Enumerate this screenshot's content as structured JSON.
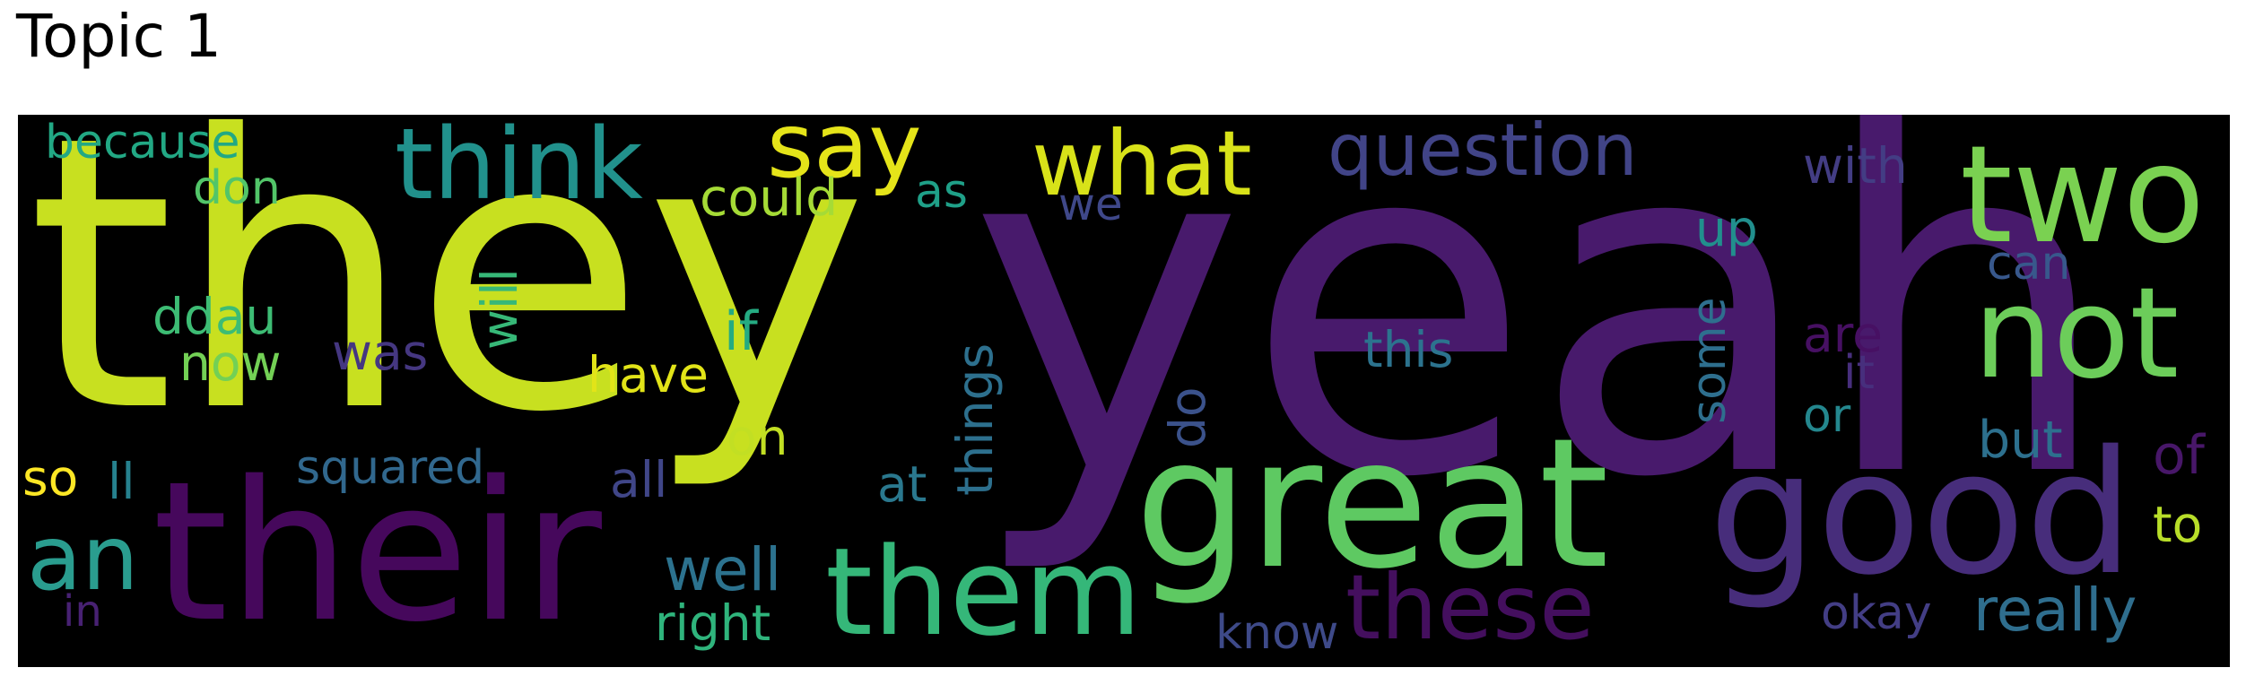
{
  "title": "Topic 1",
  "words": {
    "yeah": {
      "text": "yeah",
      "color": "#481a6c"
    },
    "they": {
      "text": "they",
      "color": "#c8e020"
    },
    "their": {
      "text": "their",
      "color": "#46085c"
    },
    "great": {
      "text": "great",
      "color": "#5ec962"
    },
    "good": {
      "text": "good",
      "color": "#472d7b"
    },
    "them": {
      "text": "them",
      "color": "#35b779"
    },
    "two": {
      "text": "two",
      "color": "#7ad151"
    },
    "not": {
      "text": "not",
      "color": "#6ccd5a"
    },
    "think": {
      "text": "think",
      "color": "#21918c"
    },
    "these": {
      "text": "these",
      "color": "#440f5e"
    },
    "what": {
      "text": "what",
      "color": "#d8e219"
    },
    "say": {
      "text": "say",
      "color": "#e5e419"
    },
    "question": {
      "text": "question",
      "color": "#414487"
    },
    "an": {
      "text": "an",
      "color": "#2a9d8f"
    },
    "really": {
      "text": "really",
      "color": "#2f6e8e"
    },
    "know": {
      "text": "know",
      "color": "#3e4a89"
    },
    "okay": {
      "text": "okay",
      "color": "#433e85"
    },
    "well": {
      "text": "well",
      "color": "#2c728e"
    },
    "right": {
      "text": "right",
      "color": "#2fb47c"
    },
    "squared": {
      "text": "squared",
      "color": "#31688e"
    },
    "because": {
      "text": "because",
      "color": "#22a884"
    },
    "could": {
      "text": "could",
      "color": "#a5db36"
    },
    "don": {
      "text": "don",
      "color": "#52c569"
    },
    "ddau": {
      "text": "ddau",
      "color": "#3dbc74"
    },
    "now": {
      "text": "now",
      "color": "#73d055"
    },
    "was": {
      "text": "was",
      "color": "#453781"
    },
    "will": {
      "text": "will",
      "color": "#37b878"
    },
    "if": {
      "text": "if",
      "color": "#25ab82"
    },
    "have": {
      "text": "have",
      "color": "#e2e418"
    },
    "on": {
      "text": "on",
      "color": "#c2df23"
    },
    "all": {
      "text": "all",
      "color": "#404688"
    },
    "at": {
      "text": "at",
      "color": "#2a788e"
    },
    "things": {
      "text": "things",
      "color": "#2d708e"
    },
    "do": {
      "text": "do",
      "color": "#3b528b"
    },
    "this": {
      "text": "this",
      "color": "#2c738e"
    },
    "some": {
      "text": "some",
      "color": "#2e6f8e"
    },
    "up": {
      "text": "up",
      "color": "#218f8d"
    },
    "with": {
      "text": "with",
      "color": "#433d84"
    },
    "as": {
      "text": "as",
      "color": "#1fa088"
    },
    "we": {
      "text": "we",
      "color": "#3f4889"
    },
    "can": {
      "text": "can",
      "color": "#38588c"
    },
    "are": {
      "text": "are",
      "color": "#471063"
    },
    "it": {
      "text": "it",
      "color": "#472f7d"
    },
    "or": {
      "text": "or",
      "color": "#24878e"
    },
    "but": {
      "text": "but",
      "color": "#2d708e"
    },
    "of": {
      "text": "of",
      "color": "#481769"
    },
    "to": {
      "text": "to",
      "color": "#b8de29"
    },
    "so": {
      "text": "so",
      "color": "#fde725"
    },
    "ll": {
      "text": "ll",
      "color": "#26818e"
    },
    "in": {
      "text": "in",
      "color": "#482173"
    }
  }
}
